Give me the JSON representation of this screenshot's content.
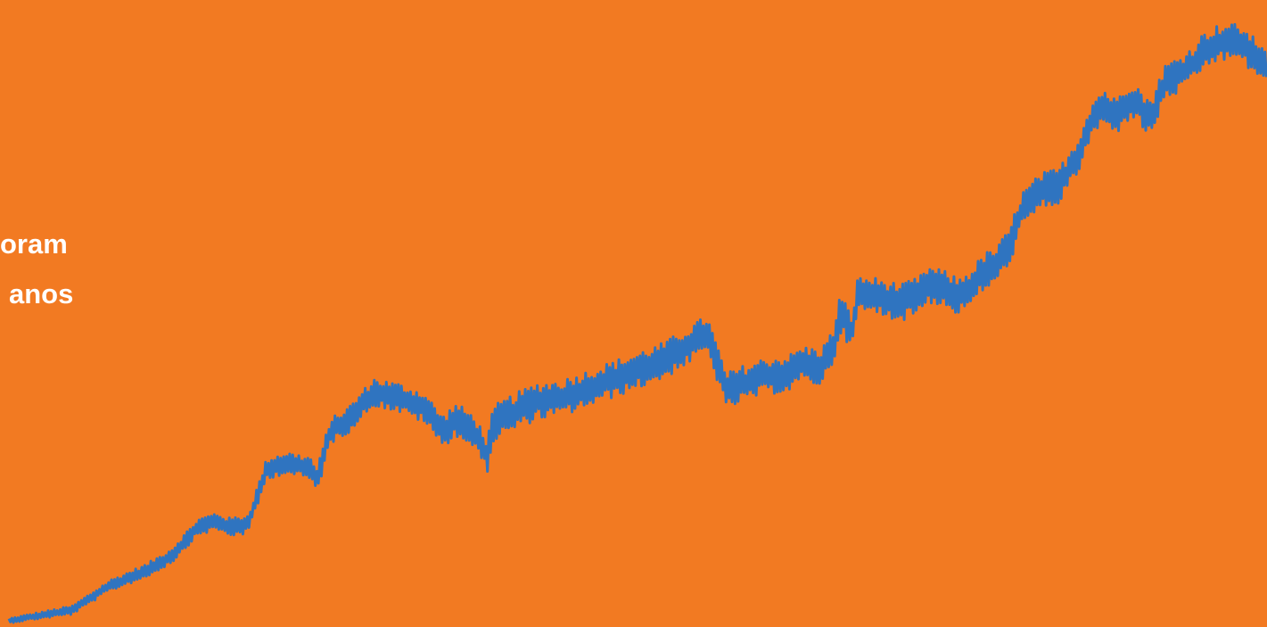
{
  "caption": {
    "line1": "oram",
    "line2": "anos"
  },
  "colors": {
    "background": "#F27A22",
    "line": "#2F74C0",
    "caption_text": "#FFFFFF"
  },
  "chart_data": {
    "type": "line",
    "title": "",
    "xlabel": "",
    "ylabel": "",
    "grid": false,
    "legend": "none",
    "xlim": [
      0,
      100
    ],
    "ylim": [
      0,
      100
    ],
    "noise": true,
    "series": [
      {
        "color": "#2F74C0",
        "x": [
          0,
          2,
          5,
          8,
          11,
          13,
          15,
          16.5,
          17.5,
          19,
          20.5,
          22,
          24,
          24.5,
          25.5,
          27,
          29,
          31,
          33,
          34.5,
          35.5,
          37,
          38,
          38.5,
          39,
          40,
          42,
          44,
          46,
          48,
          50,
          52,
          54,
          55.5,
          56,
          56.5,
          57,
          58,
          60,
          62,
          63,
          64.5,
          65.5,
          66,
          66.5,
          67,
          67.5,
          69,
          71,
          72.5,
          73,
          74,
          75.5,
          76.5,
          77.5,
          78.5,
          79.5,
          80,
          80.5,
          82,
          83.5,
          85,
          86,
          87,
          87.5,
          88,
          88.5,
          89.5,
          90.5,
          91,
          91.5,
          92,
          93,
          94,
          95,
          96,
          97,
          98,
          99,
          100
        ],
        "y": [
          0.3,
          1,
          2,
          6,
          8.5,
          11,
          15.5,
          16.5,
          15.5,
          16,
          25,
          26,
          25,
          23,
          31,
          33,
          37.5,
          36.5,
          35,
          31,
          33,
          31,
          27,
          32,
          33,
          34,
          36,
          36.5,
          38,
          39.5,
          41,
          42.5,
          45,
          47,
          44,
          41,
          37.5,
          38.5,
          40,
          40.5,
          42,
          41.5,
          44.5,
          50,
          49,
          47,
          53.5,
          53,
          52,
          53.5,
          55,
          54.5,
          53,
          54.5,
          57,
          58,
          61,
          64,
          67,
          70,
          71,
          76,
          81.5,
          84,
          83,
          82,
          84,
          85,
          82,
          83,
          86,
          88,
          89,
          90.5,
          93,
          94,
          94.5,
          94,
          92,
          91
        ]
      }
    ]
  }
}
